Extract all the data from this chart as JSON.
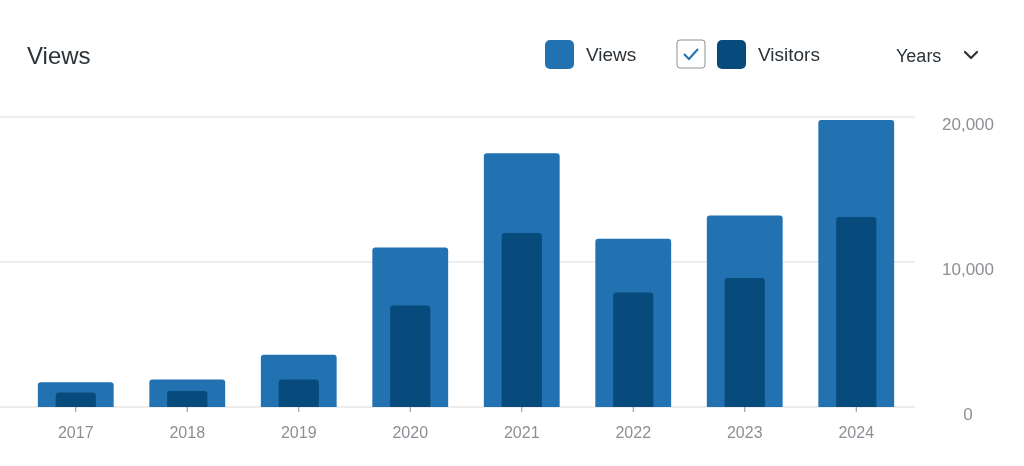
{
  "chart_data": {
    "type": "bar",
    "title": "Views",
    "categories": [
      "2017",
      "2018",
      "2019",
      "2020",
      "2021",
      "2022",
      "2023",
      "2024"
    ],
    "series": [
      {
        "name": "Views",
        "color": "#2271b1",
        "values": [
          1700,
          1900,
          3600,
          11000,
          17500,
          11600,
          13200,
          19800
        ]
      },
      {
        "name": "Visitors",
        "color": "#064b7b",
        "values": [
          1000,
          1100,
          1900,
          7000,
          12000,
          7900,
          8900,
          13100
        ]
      }
    ],
    "ylim": [
      0,
      20000
    ],
    "yticks": [
      0,
      {
        "value": 10000,
        "label": "10,000"
      },
      {
        "value": 20000,
        "label": "20,000"
      }
    ],
    "grid": "y",
    "legend": "top right",
    "annotations": [
      "Years"
    ]
  }
}
